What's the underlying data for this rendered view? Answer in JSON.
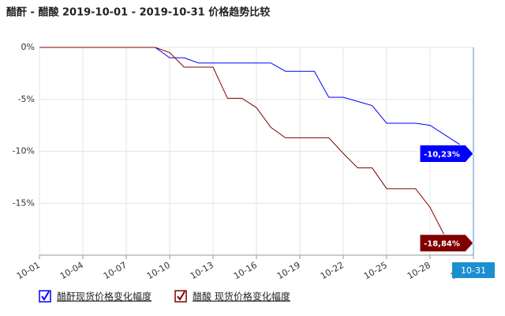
{
  "chart_data": {
    "type": "line",
    "title": "醋酐 - 醋酸 2019-10-01 - 2019-10-31 价格趋势比较",
    "categories": [
      "10-01",
      null,
      null,
      "10-04",
      null,
      null,
      "10-07",
      null,
      null,
      "10-10",
      null,
      null,
      "10-13",
      null,
      null,
      "10-16",
      null,
      null,
      "10-19",
      null,
      null,
      "10-22",
      null,
      null,
      "10-25",
      null,
      null,
      "10-28",
      null,
      null,
      "10-31"
    ],
    "series": [
      {
        "name": "醋酐现货价格变化幅度",
        "color": "#0000ff",
        "values": [
          0,
          0,
          0,
          0,
          0,
          0,
          0,
          0,
          0,
          -1,
          -1,
          -1.5,
          -1.5,
          -1.5,
          -1.5,
          -1.5,
          -1.5,
          -2.3,
          -2.3,
          -2.3,
          -4.8,
          -4.8,
          -5.2,
          -5.6,
          -7.3,
          -7.3,
          -7.3,
          -7.5,
          -8.4,
          -9.3,
          -10.23
        ],
        "value_labels": [
          null,
          null,
          null,
          null,
          null,
          null,
          null,
          null,
          null,
          null,
          null,
          null,
          null,
          null,
          null,
          null,
          null,
          null,
          null,
          null,
          null,
          null,
          null,
          null,
          null,
          null,
          null,
          null,
          null,
          null,
          "-10,23%"
        ]
      },
      {
        "name": "醋酸 现货价格变化幅度",
        "color": "#800000",
        "values": [
          0,
          0,
          0,
          0,
          0,
          0,
          0,
          0,
          0,
          -0.5,
          -1.9,
          -1.9,
          -1.9,
          -4.9,
          -4.9,
          -5.8,
          -7.7,
          -8.7,
          -8.7,
          -8.7,
          -8.7,
          -10.2,
          -11.6,
          -11.6,
          -13.6,
          -13.6,
          -13.6,
          -15.4,
          -18.1,
          -18.84,
          -18.84
        ],
        "value_labels": [
          null,
          null,
          null,
          null,
          null,
          null,
          null,
          null,
          null,
          null,
          null,
          null,
          null,
          null,
          null,
          null,
          null,
          null,
          null,
          null,
          null,
          null,
          null,
          null,
          null,
          null,
          null,
          null,
          null,
          null,
          "-18,84%"
        ]
      }
    ],
    "ylim": [
      -20,
      0
    ],
    "yticks": [
      {
        "value": 0,
        "label": "0%"
      },
      {
        "value": -5,
        "label": "-5%"
      },
      {
        "value": -10,
        "label": "-10%"
      },
      {
        "value": -15,
        "label": "-15%"
      }
    ],
    "grid": true
  }
}
